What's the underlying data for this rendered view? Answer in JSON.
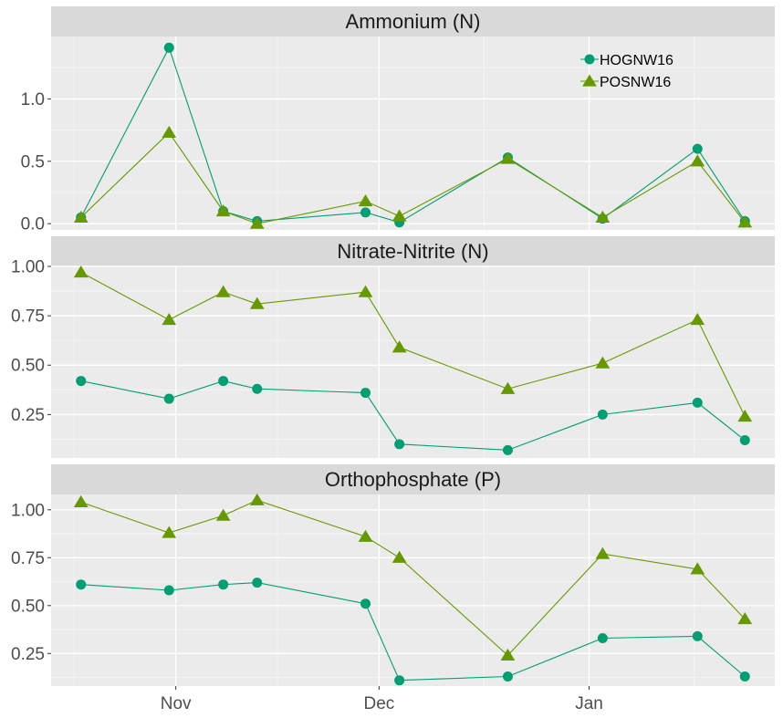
{
  "chart_data": {
    "type": "line",
    "x_dates": [
      "2016-10-18",
      "2016-10-31",
      "2016-11-08",
      "2016-11-13",
      "2016-11-29",
      "2016-12-04",
      "2016-12-20",
      "2017-01-03",
      "2017-01-17",
      "2017-01-24"
    ],
    "x_ticks": [
      {
        "date": "2016-11-01",
        "label": "Nov"
      },
      {
        "date": "2016-12-01",
        "label": "Dec"
      },
      {
        "date": "2017-01-01",
        "label": "Jan"
      }
    ],
    "legend": {
      "position": "top-right",
      "entries": [
        {
          "name": "HOGNW16",
          "color": "#009E73",
          "shape": "circle"
        },
        {
          "name": "POSNW16",
          "color": "#669900",
          "shape": "triangle"
        }
      ]
    },
    "panels": [
      {
        "title": "Ammonium (N)",
        "ylim": [
          -0.05,
          1.5
        ],
        "y_ticks": [
          {
            "value": 0.0,
            "label": "0.0"
          },
          {
            "value": 0.5,
            "label": "0.5"
          },
          {
            "value": 1.0,
            "label": "1.0"
          }
        ],
        "series": [
          {
            "name": "HOGNW16",
            "values": [
              0.05,
              1.41,
              0.1,
              0.02,
              0.09,
              0.01,
              0.53,
              0.04,
              0.6,
              0.02
            ]
          },
          {
            "name": "POSNW16",
            "values": [
              0.05,
              0.73,
              0.1,
              0.0,
              0.18,
              0.06,
              0.52,
              0.05,
              0.5,
              0.01
            ]
          }
        ]
      },
      {
        "title": "Nitrate-Nitrite (N)",
        "ylim": [
          0.03,
          1.0
        ],
        "y_ticks": [
          {
            "value": 0.25,
            "label": "0.25"
          },
          {
            "value": 0.5,
            "label": "0.50"
          },
          {
            "value": 0.75,
            "label": "0.75"
          },
          {
            "value": 1.0,
            "label": "1.00"
          }
        ],
        "series": [
          {
            "name": "HOGNW16",
            "values": [
              0.42,
              0.33,
              0.42,
              0.38,
              0.36,
              0.1,
              0.07,
              0.25,
              0.31,
              0.12
            ]
          },
          {
            "name": "POSNW16",
            "values": [
              0.97,
              0.73,
              0.87,
              0.81,
              0.87,
              0.59,
              0.38,
              0.51,
              0.73,
              0.24
            ]
          }
        ]
      },
      {
        "title": "Orthophosphate (P)",
        "ylim": [
          0.08,
          1.08
        ],
        "y_ticks": [
          {
            "value": 0.25,
            "label": "0.25"
          },
          {
            "value": 0.5,
            "label": "0.50"
          },
          {
            "value": 0.75,
            "label": "0.75"
          },
          {
            "value": 1.0,
            "label": "1.00"
          }
        ],
        "series": [
          {
            "name": "HOGNW16",
            "values": [
              0.61,
              0.58,
              0.61,
              0.62,
              0.51,
              0.11,
              0.13,
              0.33,
              0.34,
              0.13
            ]
          },
          {
            "name": "POSNW16",
            "values": [
              1.04,
              0.88,
              0.97,
              1.05,
              0.86,
              0.75,
              0.24,
              0.77,
              0.69,
              0.43
            ]
          }
        ]
      }
    ]
  },
  "colors": {
    "panel_background": "#EBEBEB",
    "strip_background": "#D9D9D9",
    "grid_major": "#FFFFFF",
    "grid_minor": "#F4F4F4"
  }
}
